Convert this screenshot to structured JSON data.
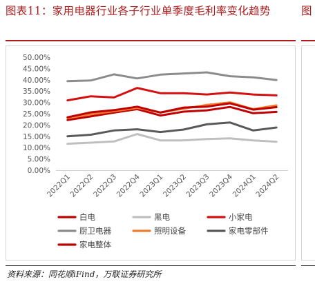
{
  "header": {
    "title": "图表11：家用电器行业各子行业单季度毛利率变化趋势",
    "right_title_fragment": "图"
  },
  "footer": {
    "source": "资料来源：同花顺iFind，万联证券研究所",
    "right_fragment": "资"
  },
  "colors": {
    "title_red": "#b01c1c",
    "baidian": "#c00000",
    "heidian": "#bfbfbf",
    "xiaojiadian": "#d40f0f",
    "chuwei": "#8c8c8c",
    "zhaoming": "#ed7d31",
    "lingbujian": "#595959",
    "zhengti": "#c00000"
  },
  "chart_data": {
    "type": "line",
    "title": "",
    "xlabel": "",
    "ylabel": "",
    "ylim": [
      0,
      50
    ],
    "grid": false,
    "legend_position": "bottom",
    "categories": [
      "2022Q1",
      "2022Q2",
      "2022Q3",
      "2022Q4",
      "2023Q1",
      "2023Q2",
      "2023Q3",
      "2023Q4",
      "2024Q1",
      "2024Q2"
    ],
    "y_ticks": [
      "0.00%",
      "5.00%",
      "10.00%",
      "15.00%",
      "20.00%",
      "25.00%",
      "30.00%",
      "35.00%",
      "40.00%",
      "45.00%",
      "50.00%"
    ],
    "series": [
      {
        "name": "白电",
        "key": "baidian",
        "values": [
          22.2,
          23.8,
          25.5,
          27.0,
          24.2,
          25.9,
          26.5,
          28.0,
          25.2,
          25.8
        ]
      },
      {
        "name": "黑电",
        "key": "heidian",
        "values": [
          11.7,
          12.2,
          12.7,
          16.0,
          13.2,
          13.2,
          13.8,
          14.1,
          13.2,
          12.6
        ]
      },
      {
        "name": "小家电",
        "key": "xiaojiadian",
        "values": [
          30.9,
          32.7,
          32.2,
          36.4,
          34.1,
          34.1,
          33.5,
          34.4,
          33.5,
          33.1
        ]
      },
      {
        "name": "厨卫电器",
        "key": "chuwei",
        "values": [
          39.4,
          39.7,
          42.4,
          40.6,
          42.3,
          42.8,
          43.3,
          41.6,
          41.1,
          39.9
        ]
      },
      {
        "name": "照明设备",
        "key": "zhaoming",
        "values": [
          23.1,
          24.8,
          26.1,
          27.6,
          25.6,
          27.2,
          28.9,
          30.0,
          27.0,
          28.7
        ]
      },
      {
        "name": "家电零部件",
        "key": "lingbujian",
        "values": [
          15.0,
          15.7,
          17.6,
          18.1,
          16.9,
          18.0,
          20.3,
          21.1,
          17.6,
          18.9
        ]
      },
      {
        "name": "家电整体",
        "key": "zhengti",
        "values": [
          23.4,
          25.6,
          26.6,
          28.1,
          25.5,
          27.7,
          28.1,
          29.6,
          26.8,
          27.9
        ]
      }
    ]
  }
}
